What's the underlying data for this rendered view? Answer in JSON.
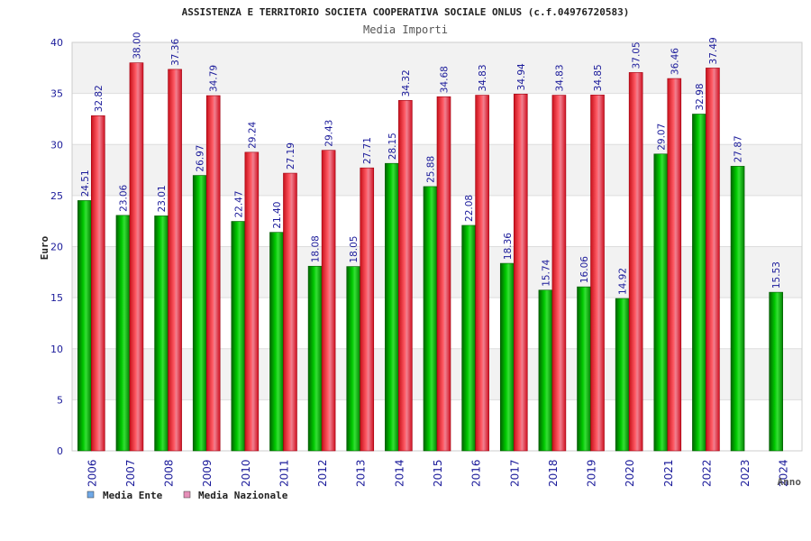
{
  "chart_data": {
    "type": "bar",
    "title": "ASSISTENZA E TERRITORIO SOCIETA COOPERATIVA SOCIALE ONLUS (c.f.04976720583)",
    "subtitle": "Media Importi",
    "xlabel": "Anno",
    "ylabel": "Euro",
    "ylim": [
      0,
      40
    ],
    "yticks": [
      0,
      5,
      10,
      15,
      20,
      25,
      30,
      35,
      40
    ],
    "grid": true,
    "legend_position": "bottom-left",
    "categories": [
      "2006",
      "2007",
      "2008",
      "2009",
      "2010",
      "2011",
      "2012",
      "2013",
      "2014",
      "2015",
      "2016",
      "2017",
      "2018",
      "2019",
      "2020",
      "2021",
      "2022",
      "2023",
      "2024"
    ],
    "series": [
      {
        "name": "Media Ente",
        "color": "#00a000",
        "legend_color": "#6fa8e6",
        "values": [
          24.51,
          23.06,
          23.01,
          26.97,
          22.47,
          21.4,
          18.08,
          18.05,
          28.15,
          25.88,
          22.08,
          18.36,
          15.74,
          16.06,
          14.92,
          29.07,
          32.98,
          27.87,
          15.53
        ],
        "labels": [
          "24.51",
          "23.06",
          "23.01",
          "26.97",
          "22.47",
          "21.40",
          "18.08",
          "18.05",
          "28.15",
          "25.88",
          "22.08",
          "18.36",
          "15.74",
          "16.06",
          "14.92",
          "29.07",
          "32.98",
          "27.87",
          "15.53"
        ]
      },
      {
        "name": "Media Nazionale",
        "color": "#e8202a",
        "legend_color": "#e58fb8",
        "values": [
          32.82,
          38.0,
          37.36,
          34.79,
          29.24,
          27.19,
          29.43,
          27.71,
          34.32,
          34.68,
          34.83,
          34.94,
          34.83,
          34.85,
          37.05,
          36.46,
          37.49,
          null,
          null
        ],
        "labels": [
          "32.82",
          "38.00",
          "37.36",
          "34.79",
          "29.24",
          "27.19",
          "29.43",
          "27.71",
          "34.32",
          "34.68",
          "34.83",
          "34.94",
          "34.83",
          "34.85",
          "37.05",
          "36.46",
          "37.49",
          "",
          ""
        ]
      }
    ]
  }
}
